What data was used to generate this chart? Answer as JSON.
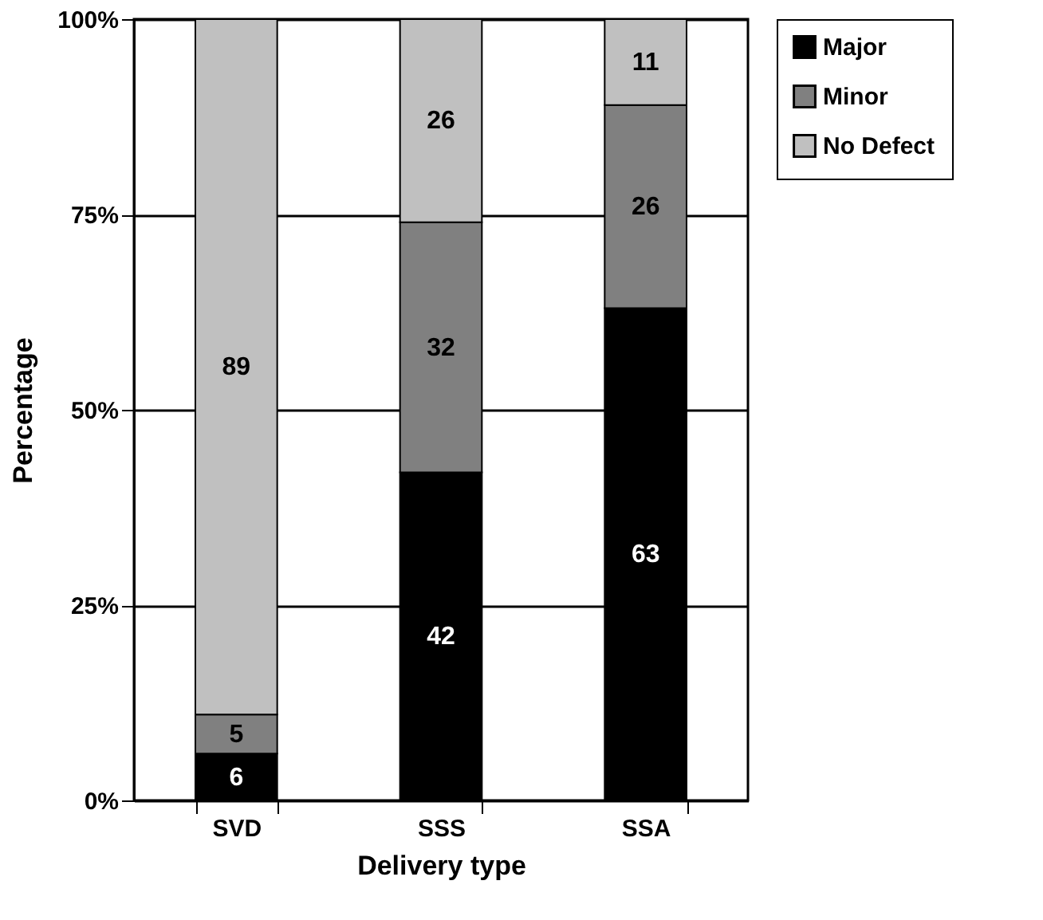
{
  "chart_data": {
    "type": "bar",
    "stacked": true,
    "xlabel": "Delivery type",
    "ylabel": "Percentage",
    "categories": [
      "SVD",
      "SSS",
      "SSA"
    ],
    "series": [
      {
        "name": "Major",
        "color": "#000000",
        "values": [
          6,
          42,
          63
        ]
      },
      {
        "name": "Minor",
        "color": "#808080",
        "values": [
          5,
          32,
          26
        ]
      },
      {
        "name": "No Defect",
        "color": "#c0c0c0",
        "values": [
          89,
          26,
          11
        ]
      }
    ],
    "ylim": [
      0,
      100
    ],
    "yticks": [
      {
        "value": 0,
        "label": "0%"
      },
      {
        "value": 25,
        "label": "25%"
      },
      {
        "value": 50,
        "label": "50%"
      },
      {
        "value": 75,
        "label": "75%"
      },
      {
        "value": 100,
        "label": "100%"
      }
    ],
    "grid": "y",
    "legend": "right",
    "data_labels": true
  }
}
